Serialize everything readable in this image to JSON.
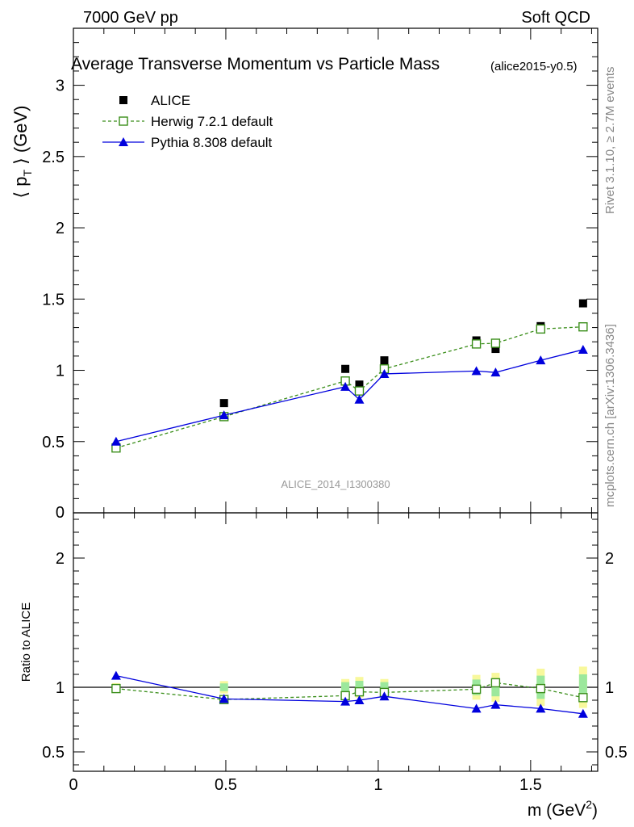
{
  "header": {
    "left": "7000 GeV pp",
    "right": "Soft QCD"
  },
  "side_labels": {
    "rivet": "Rivet 3.1.10, ≥ 2.7M events",
    "mcplots": "mcplots.cern.ch [arXiv:1306.3436]"
  },
  "chart_data": {
    "type": "scatter",
    "title": "Average Transverse Momentum vs Particle Mass",
    "subtitle": "(alice2015-y0.5)",
    "watermark": "ALICE_2014_I1300380",
    "xlabel": "m (GeV",
    "xlabel_sup": "2",
    "xlabel_close": ")",
    "ylabel_main": "⟨ p",
    "ylabel_sub": "T",
    "ylabel_rest": " ⟩ (GeV)",
    "ylabel_ratio": "Ratio to ALICE",
    "xlim": [
      0,
      1.72
    ],
    "ylim": [
      0,
      3.4
    ],
    "ratio_ylim": [
      0.35,
      2.35
    ],
    "x_ticks": [
      "0",
      "0.5",
      "1",
      "1.5"
    ],
    "x_tick_values": [
      0,
      0.5,
      1,
      1.5
    ],
    "y_ticks": [
      "0.5",
      "1",
      "1.5",
      "2",
      "2.5",
      "3"
    ],
    "y_tick_values": [
      0.5,
      1,
      1.5,
      2,
      2.5,
      3
    ],
    "y_zero_label": "0",
    "ratio_ticks": [
      "0.5",
      "1",
      "2"
    ],
    "ratio_tick_values": [
      0.5,
      1,
      2
    ],
    "legend_position": "top-left",
    "grid": false,
    "colors": {
      "data": "#000000",
      "herwig": "#3a8e1a",
      "pythia": "#0000dd",
      "band_inner": "#9ce89c",
      "band_outer": "#f8f89c"
    },
    "series": [
      {
        "name": "ALICE",
        "style": "data",
        "x": [
          0.14,
          0.494,
          0.892,
          0.938,
          1.02,
          1.322,
          1.385,
          1.533,
          1.672
        ],
        "y": [
          0.46,
          0.77,
          1.01,
          0.9,
          1.07,
          1.21,
          1.15,
          1.31,
          1.47
        ]
      },
      {
        "name": "Herwig 7.2.1 default",
        "style": "herwig",
        "x": [
          0.14,
          0.494,
          0.892,
          0.938,
          1.02,
          1.322,
          1.385,
          1.533,
          1.672
        ],
        "y": [
          0.455,
          0.675,
          0.925,
          0.855,
          1.01,
          1.185,
          1.19,
          1.29,
          1.305
        ],
        "ratio": [
          0.99,
          0.905,
          0.935,
          0.965,
          0.96,
          0.985,
          1.035,
          0.99,
          0.92
        ]
      },
      {
        "name": "Pythia 8.308 default",
        "style": "pythia",
        "x": [
          0.14,
          0.494,
          0.892,
          0.938,
          1.02,
          1.322,
          1.385,
          1.533,
          1.672
        ],
        "y": [
          0.5,
          0.685,
          0.885,
          0.795,
          0.975,
          0.995,
          0.985,
          1.07,
          1.145
        ],
        "ratio": [
          1.09,
          0.91,
          0.89,
          0.9,
          0.93,
          0.835,
          0.865,
          0.835,
          0.795
        ]
      }
    ],
    "ratio_band_half_width": [
      0.02,
      0.03,
      0.04,
      0.05,
      0.04,
      0.06,
      0.07,
      0.09,
      0.1
    ]
  }
}
